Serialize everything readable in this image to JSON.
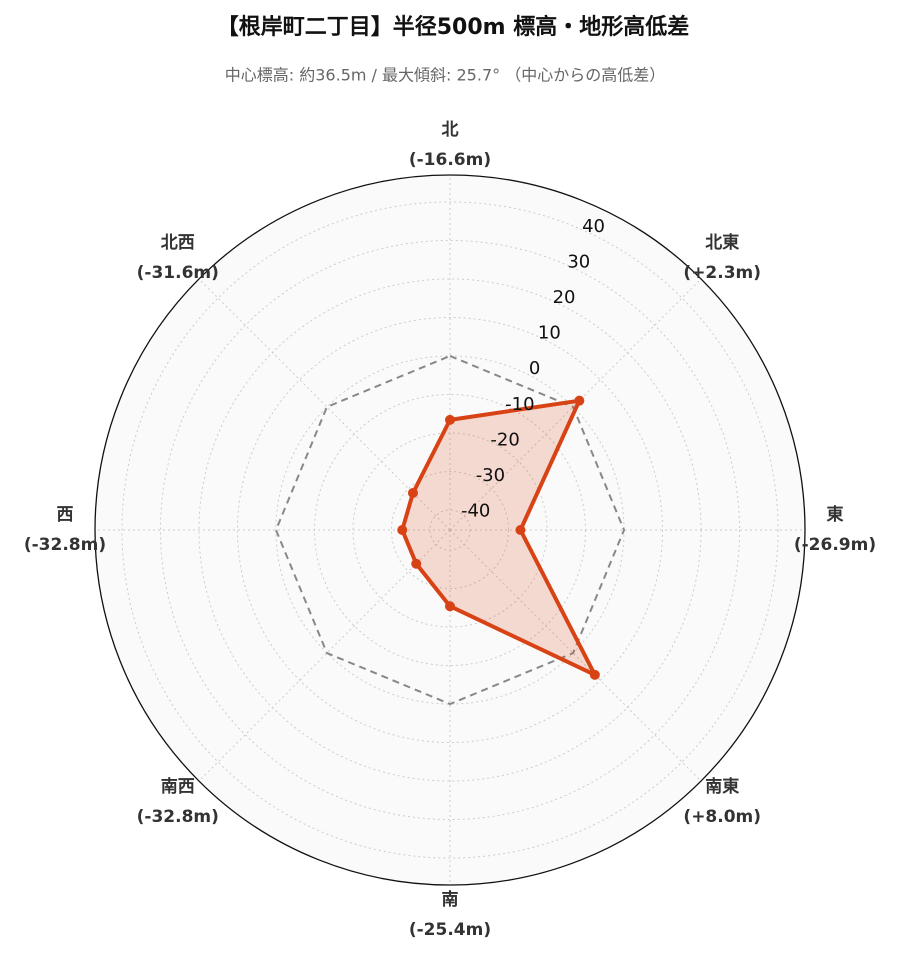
{
  "chart_data": {
    "type": "radar",
    "title": "【根岸町二丁目】半径500m 標高・地形高低差",
    "subtitle": "中心標高: 約36.5m / 最大傾斜: 25.7° （中心からの高低差）",
    "categories": [
      "北",
      "北東",
      "東",
      "南東",
      "南",
      "南西",
      "西",
      "北西"
    ],
    "values": [
      -16.6,
      2.3,
      -26.9,
      8.0,
      -25.4,
      -32.8,
      -32.8,
      -31.6
    ],
    "value_labels": [
      "(-16.6m)",
      "(+2.3m)",
      "(-26.9m)",
      "(+8.0m)",
      "(-25.4m)",
      "(-32.8m)",
      "(-32.8m)",
      "(-31.6m)"
    ],
    "color": "#d84315",
    "ylim": [
      -45.2,
      47
    ],
    "yticks": [
      -40,
      -30,
      -20,
      -10,
      0,
      10,
      20,
      30,
      40
    ],
    "reference_line": 0,
    "grid": true
  }
}
